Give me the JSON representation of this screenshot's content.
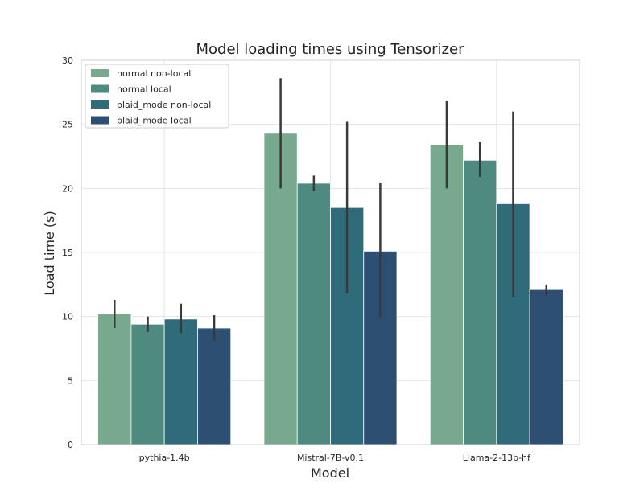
{
  "chart_data": {
    "type": "bar",
    "title": "Model loading times using Tensorizer",
    "xlabel": "Model",
    "ylabel": "Load time (s)",
    "ylim": [
      0,
      30
    ],
    "yticks": [
      0,
      5,
      10,
      15,
      20,
      25,
      30
    ],
    "grid": true,
    "legend_position": "top-left",
    "categories": [
      "pythia-1.4b",
      "Mistral-7B-v0.1",
      "Llama-2-13b-hf"
    ],
    "series": [
      {
        "name": "normal non-local",
        "color": "#76a98d",
        "values": [
          10.2,
          24.3,
          23.4
        ],
        "error_low": [
          9.1,
          20.0,
          20.0
        ],
        "error_high": [
          11.3,
          28.6,
          26.8
        ]
      },
      {
        "name": "normal local",
        "color": "#4e8a80",
        "values": [
          9.4,
          20.4,
          22.2
        ],
        "error_low": [
          8.8,
          19.8,
          20.9
        ],
        "error_high": [
          10.0,
          21.0,
          23.6
        ]
      },
      {
        "name": "plaid_mode non-local",
        "color": "#2f6b78",
        "values": [
          9.8,
          18.5,
          18.8
        ],
        "error_low": [
          8.7,
          11.8,
          11.5
        ],
        "error_high": [
          11.0,
          25.2,
          26.0
        ]
      },
      {
        "name": "plaid_mode local",
        "color": "#2c4f72",
        "values": [
          9.1,
          15.1,
          12.1
        ],
        "error_low": [
          8.1,
          9.9,
          11.6
        ],
        "error_high": [
          10.1,
          20.4,
          12.5
        ]
      }
    ]
  }
}
